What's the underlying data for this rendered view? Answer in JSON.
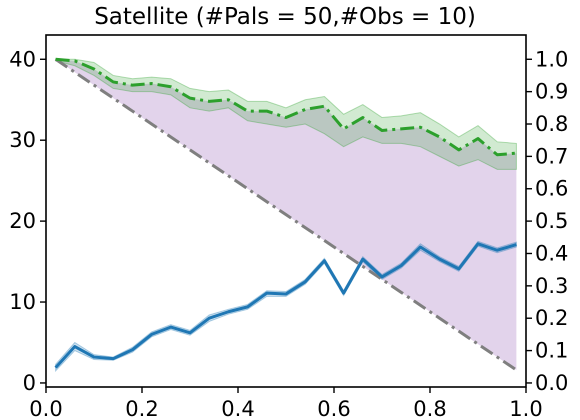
{
  "chart_data": {
    "type": "line",
    "title": "Satellite (#Pals = 50,#Obs = 10)",
    "xlabel": "",
    "ylabel": "",
    "xlim": [
      0.0,
      1.0
    ],
    "ylim_left": [
      -0.5,
      43
    ],
    "ylim_right": [
      -0.0125,
      1.075
    ],
    "x_ticks": [
      "0.0",
      "0.2",
      "0.4",
      "0.6",
      "0.8",
      "1.0"
    ],
    "y_ticks_left": [
      "0",
      "10",
      "20",
      "30",
      "40"
    ],
    "y_ticks_right": [
      "0.0",
      "0.1",
      "0.2",
      "0.3",
      "0.4",
      "0.5",
      "0.6",
      "0.7",
      "0.8",
      "0.9",
      "1.0"
    ],
    "grid": false,
    "legend": "none",
    "x": [
      0.02,
      0.06,
      0.1,
      0.14,
      0.18,
      0.22,
      0.26,
      0.3,
      0.34,
      0.38,
      0.42,
      0.46,
      0.5,
      0.54,
      0.58,
      0.62,
      0.66,
      0.7,
      0.74,
      0.78,
      0.82,
      0.86,
      0.9,
      0.94,
      0.98
    ],
    "series": [
      {
        "axis": "left",
        "color": "#1f77b4",
        "style": "solid",
        "values": [
          1.9,
          4.5,
          3.2,
          3.0,
          4.1,
          6.0,
          6.9,
          6.2,
          8.0,
          8.8,
          9.4,
          11.1,
          11.0,
          12.5,
          15.1,
          11.1,
          15.3,
          13.1,
          14.5,
          16.8,
          15.3,
          14.1,
          17.2,
          16.4,
          17.1
        ],
        "band_low": [
          1.5,
          4.0,
          2.9,
          2.8,
          3.8,
          5.7,
          6.6,
          5.9,
          7.6,
          8.5,
          9.1,
          10.7,
          10.7,
          12.2,
          14.8,
          10.8,
          15.0,
          12.8,
          14.2,
          16.4,
          15.0,
          13.8,
          16.9,
          16.1,
          16.8
        ],
        "band_high": [
          2.3,
          5.0,
          3.5,
          3.2,
          4.4,
          6.3,
          7.2,
          6.5,
          8.4,
          9.1,
          9.7,
          11.4,
          11.3,
          12.8,
          15.4,
          11.4,
          15.6,
          13.4,
          14.8,
          17.2,
          15.6,
          14.4,
          17.5,
          16.7,
          17.4
        ]
      },
      {
        "axis": "right",
        "color": "#2ca02c",
        "style": "dashdot",
        "values": [
          1.0,
          0.995,
          0.97,
          0.93,
          0.92,
          0.925,
          0.915,
          0.88,
          0.87,
          0.875,
          0.84,
          0.84,
          0.82,
          0.845,
          0.855,
          0.785,
          0.82,
          0.78,
          0.785,
          0.79,
          0.76,
          0.72,
          0.755,
          0.705,
          0.71
        ],
        "band_low": [
          0.995,
          0.98,
          0.95,
          0.91,
          0.9,
          0.9,
          0.89,
          0.85,
          0.84,
          0.85,
          0.81,
          0.8,
          0.79,
          0.8,
          0.77,
          0.73,
          0.76,
          0.74,
          0.74,
          0.73,
          0.7,
          0.67,
          0.69,
          0.66,
          0.66
        ],
        "band_high": [
          1.0,
          1.0,
          0.99,
          0.95,
          0.94,
          0.945,
          0.94,
          0.91,
          0.9,
          0.905,
          0.87,
          0.87,
          0.85,
          0.875,
          0.885,
          0.83,
          0.86,
          0.82,
          0.825,
          0.835,
          0.8,
          0.76,
          0.795,
          0.745,
          0.74
        ]
      },
      {
        "axis": "right",
        "color": "#7f7f7f",
        "style": "dashdot",
        "values": [
          1.0,
          0.96,
          0.92,
          0.88,
          0.84,
          0.8,
          0.76,
          0.72,
          0.68,
          0.64,
          0.6,
          0.56,
          0.52,
          0.48,
          0.44,
          0.4,
          0.36,
          0.32,
          0.28,
          0.24,
          0.2,
          0.16,
          0.12,
          0.08,
          0.04
        ]
      }
    ],
    "shaded_region": {
      "axis": "right",
      "color": "#d8c4e4",
      "between": "green series and grey series"
    }
  }
}
